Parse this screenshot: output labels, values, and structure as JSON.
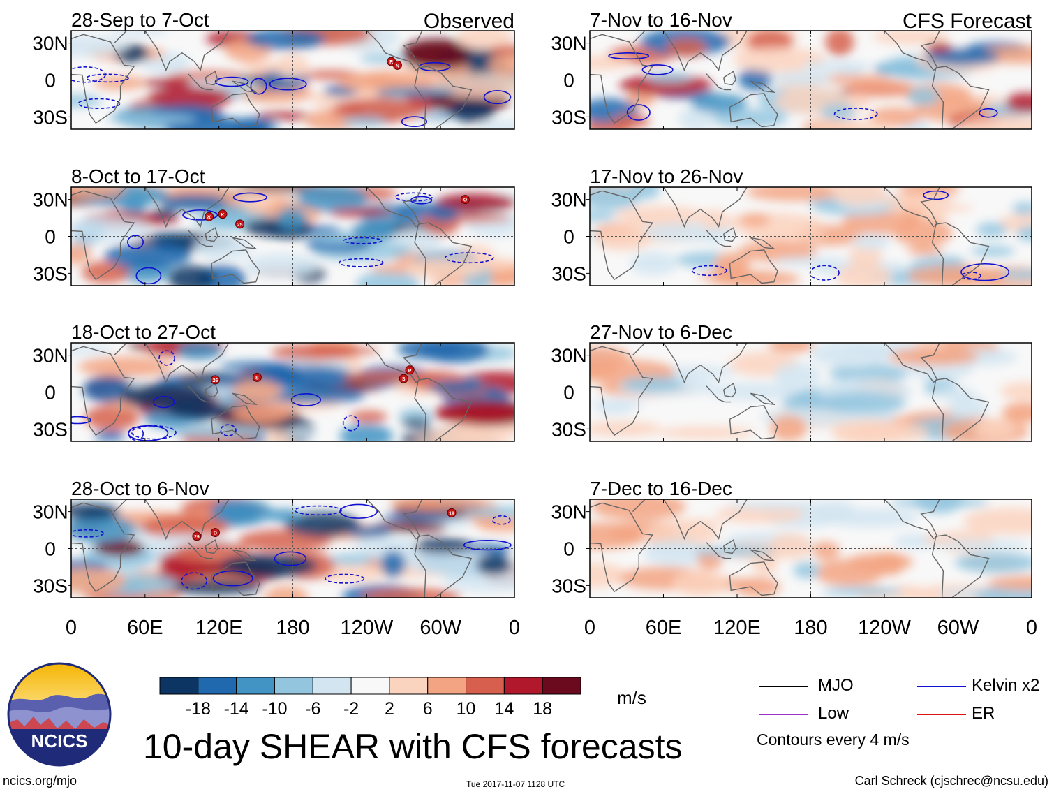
{
  "figure": {
    "title": "10-day SHEAR with CFS forecasts",
    "units": "m/s",
    "site": "ncics.org/mjo",
    "timestamp": "Tue 2017-11-07 1128 UTC",
    "credit": "Carl Schreck (cjschrec@ncsu.edu)",
    "logo_text": "NCICS",
    "contour_note": "Contours every 4 m/s"
  },
  "columns": {
    "left_label": "Observed",
    "right_label": "CFS Forecast"
  },
  "colorbar": {
    "colors": [
      "#0c3563",
      "#2169ae",
      "#4294c4",
      "#93c5df",
      "#d2e5f1",
      "#f8f8f8",
      "#fbd4c0",
      "#f3a482",
      "#d6604d",
      "#b2182b",
      "#6b0a1f"
    ],
    "labels": [
      "-18",
      "-14",
      "-10",
      "-6",
      "-2",
      "2",
      "6",
      "10",
      "14",
      "18"
    ]
  },
  "legend": [
    {
      "label": "MJO",
      "color": "#000000"
    },
    {
      "label": "Kelvin x2",
      "color": "#1010d0"
    },
    {
      "label": "Low",
      "color": "#9933cc"
    },
    {
      "label": "ER",
      "color": "#dd1111"
    }
  ],
  "chart_data": [
    {
      "type": "heatmap",
      "title": "28-Sep to 7-Oct",
      "corner_label": "Observed",
      "panel": "observed",
      "lat_ticks": [
        "30N",
        "0",
        "30S"
      ],
      "ylim": [
        -40,
        40
      ],
      "xlim": [
        0,
        360
      ],
      "storms": [
        {
          "label": "R",
          "lon": 260,
          "lat": 15
        },
        {
          "label": "N",
          "lon": 265,
          "lat": 12
        }
      ]
    },
    {
      "type": "heatmap",
      "title": "8-Oct to 17-Oct",
      "panel": "observed",
      "lat_ticks": [
        "30N",
        "0",
        "30S"
      ],
      "ylim": [
        -40,
        40
      ],
      "xlim": [
        0,
        360
      ],
      "storms": [
        {
          "label": "20",
          "lon": 112,
          "lat": 16
        },
        {
          "label": "K",
          "lon": 123,
          "lat": 18
        },
        {
          "label": "25",
          "lon": 137,
          "lat": 10
        },
        {
          "label": "O",
          "lon": 320,
          "lat": 30
        }
      ]
    },
    {
      "type": "heatmap",
      "title": "18-Oct to 27-Oct",
      "panel": "observed",
      "lat_ticks": [
        "30N",
        "0",
        "30S"
      ],
      "ylim": [
        -40,
        40
      ],
      "xlim": [
        0,
        360
      ],
      "storms": [
        {
          "label": "26",
          "lon": 117,
          "lat": 10
        },
        {
          "label": "S",
          "lon": 151,
          "lat": 12
        },
        {
          "label": "P",
          "lon": 275,
          "lat": 18
        },
        {
          "label": "S",
          "lon": 270,
          "lat": 11
        }
      ]
    },
    {
      "type": "heatmap",
      "title": "28-Oct to 6-Nov",
      "panel": "observed",
      "lat_ticks": [
        "30N",
        "0",
        "30S"
      ],
      "ylim": [
        -40,
        40
      ],
      "xlim": [
        0,
        360
      ],
      "storms": [
        {
          "label": "29",
          "lon": 102,
          "lat": 10
        },
        {
          "label": "D",
          "lon": 117,
          "lat": 13
        },
        {
          "label": "19",
          "lon": 309,
          "lat": 29
        }
      ]
    },
    {
      "type": "heatmap",
      "title": "7-Nov to 16-Nov",
      "corner_label": "CFS Forecast",
      "panel": "forecast",
      "lat_ticks": [
        "30N",
        "0",
        "30S"
      ],
      "ylim": [
        -40,
        40
      ],
      "xlim": [
        0,
        360
      ],
      "storms": []
    },
    {
      "type": "heatmap",
      "title": "17-Nov to 26-Nov",
      "panel": "forecast",
      "lat_ticks": [
        "30N",
        "0",
        "30S"
      ],
      "ylim": [
        -40,
        40
      ],
      "xlim": [
        0,
        360
      ],
      "storms": []
    },
    {
      "type": "heatmap",
      "title": "27-Nov to 6-Dec",
      "panel": "forecast",
      "lat_ticks": [
        "30N",
        "0",
        "30S"
      ],
      "ylim": [
        -40,
        40
      ],
      "xlim": [
        0,
        360
      ],
      "storms": []
    },
    {
      "type": "heatmap",
      "title": "7-Dec to 16-Dec",
      "panel": "forecast",
      "lat_ticks": [
        "30N",
        "0",
        "30S"
      ],
      "ylim": [
        -40,
        40
      ],
      "xlim": [
        0,
        360
      ],
      "storms": []
    }
  ],
  "lon_ticks": [
    "0",
    "60E",
    "120E",
    "180",
    "120W",
    "60W",
    "0"
  ]
}
